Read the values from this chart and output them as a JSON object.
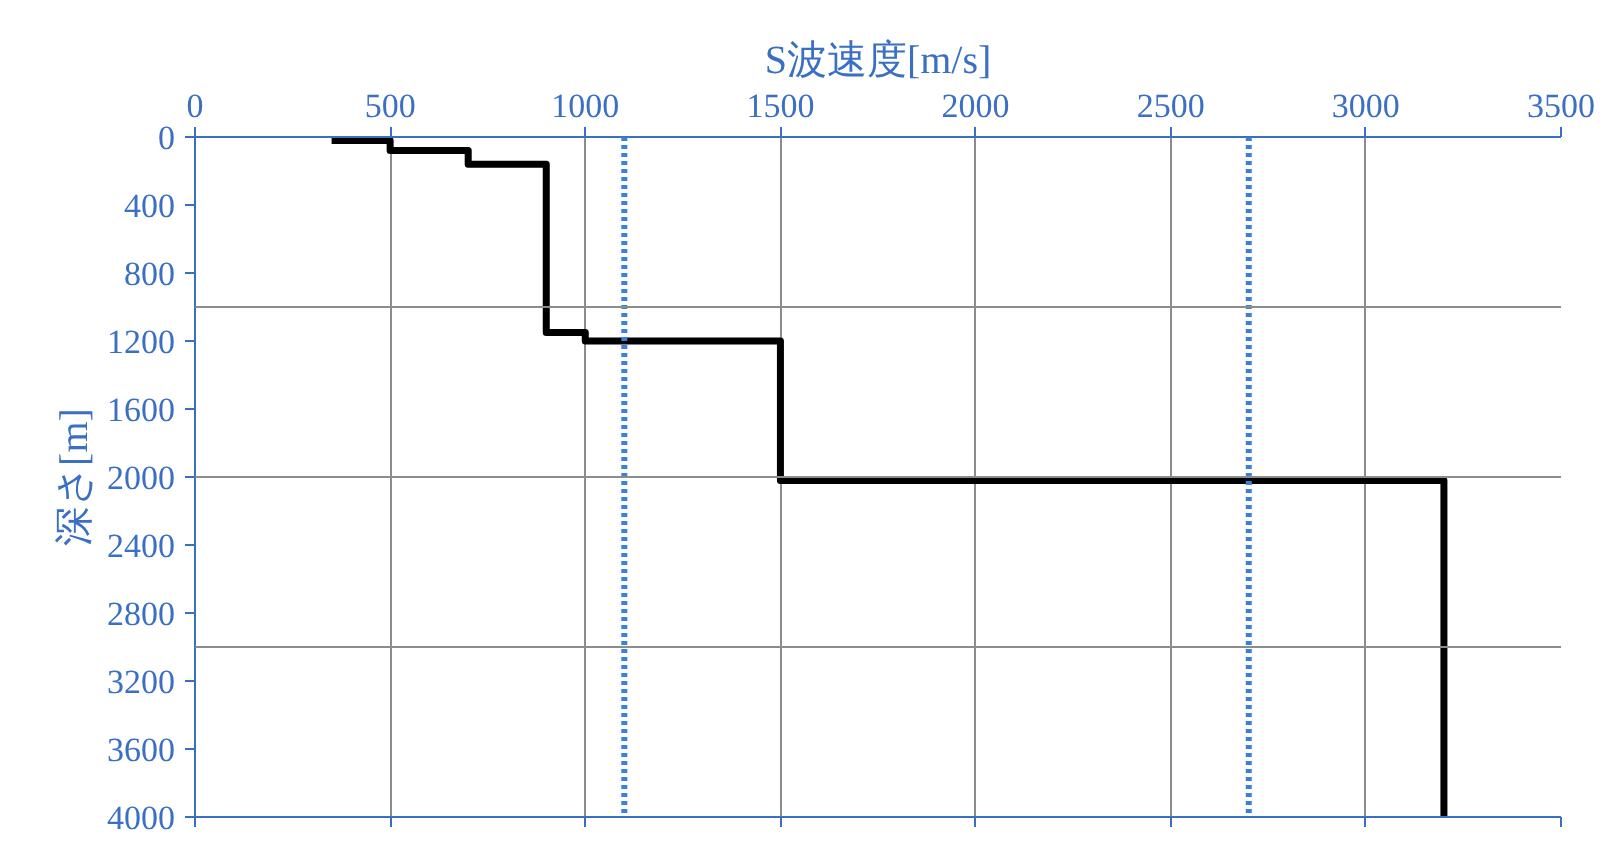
{
  "chart_data": {
    "type": "line",
    "xlabel": "S波速度[m/s]",
    "ylabel": "深さ[m]",
    "xlim": [
      0,
      3500
    ],
    "xticks": [
      0,
      500,
      1000,
      1500,
      2000,
      2500,
      3000,
      3500
    ],
    "ylim": [
      4000,
      0
    ],
    "yticks": [
      0,
      400,
      800,
      1200,
      1600,
      2000,
      2400,
      2800,
      3200,
      3600,
      4000
    ],
    "grid": "x",
    "marker": "none",
    "line_style": "solid",
    "series": [
      {
        "color": "#000000",
        "x": [
          350,
          500,
          500,
          700,
          700,
          900,
          900,
          1000,
          1000,
          1500,
          1500,
          3200,
          3200
        ],
        "values": [
          20,
          20,
          80,
          80,
          160,
          160,
          1150,
          1150,
          1200,
          1200,
          2020,
          2020,
          4000
        ]
      }
    ],
    "ref_lines": [
      {
        "axis": "x",
        "value": 1100,
        "color": "#3a7fd8",
        "line_style": "dotted"
      },
      {
        "axis": "x",
        "value": 2700,
        "color": "#3a7fd8",
        "line_style": "dotted"
      },
      {
        "axis": "y",
        "value": 1000,
        "color": "#8c8c8c",
        "line_style": "solid"
      },
      {
        "axis": "y",
        "value": 2000,
        "color": "#8c8c8c",
        "line_style": "solid"
      },
      {
        "axis": "y",
        "value": 3000,
        "color": "#8c8c8c",
        "line_style": "solid"
      }
    ]
  }
}
